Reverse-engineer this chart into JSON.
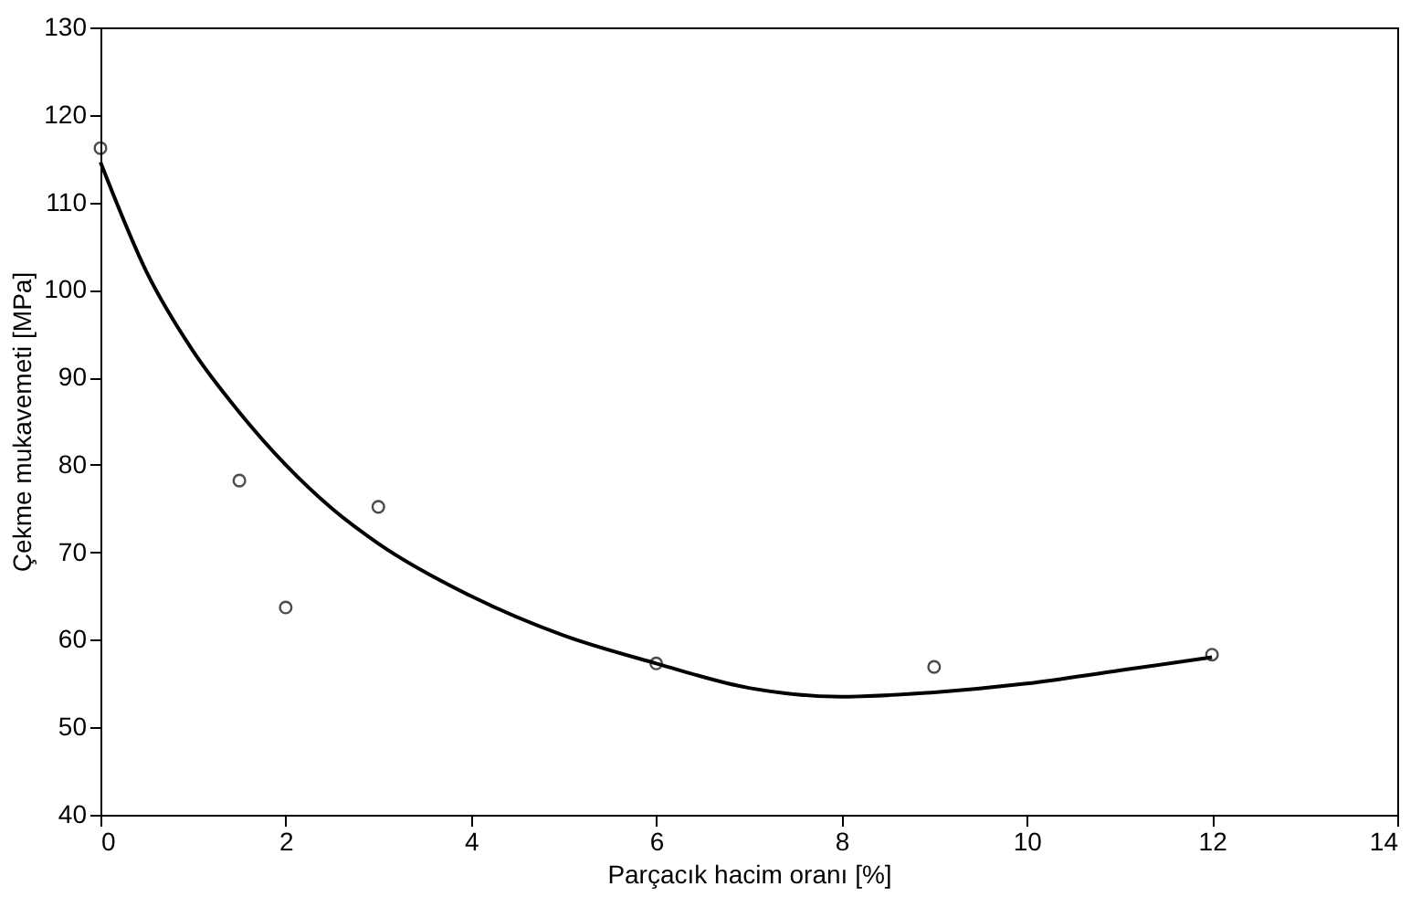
{
  "chart_data": {
    "type": "scatter",
    "xlabel": "Parçacık hacim oranı [%]",
    "ylabel": "Çekme mukavemeti [MPa]",
    "xlim": [
      0,
      14
    ],
    "xticks": [
      0,
      2,
      4,
      6,
      8,
      10,
      12,
      14
    ],
    "ylim": [
      40,
      130
    ],
    "yticks": [
      40,
      50,
      60,
      70,
      80,
      90,
      100,
      110,
      120,
      130
    ],
    "grid": false,
    "series": [
      {
        "marker": "circle",
        "color": "#000000",
        "x": [
          0,
          1.5,
          2,
          3,
          6,
          9,
          12
        ],
        "values": [
          116.2,
          78.2,
          63.7,
          75.2,
          57.3,
          56.9,
          58.3
        ]
      },
      {
        "type": "line",
        "marker": "none",
        "line_style": "solid",
        "color": "#000000",
        "x": [
          0,
          0.5,
          1,
          1.5,
          2,
          2.5,
          3,
          4,
          5,
          6,
          7,
          8,
          9,
          10,
          11,
          12
        ],
        "values": [
          114.6,
          102,
          93,
          86,
          80,
          75,
          71,
          65,
          60.5,
          57.3,
          54.5,
          53.5,
          54,
          55,
          56.5,
          58
        ]
      }
    ]
  }
}
